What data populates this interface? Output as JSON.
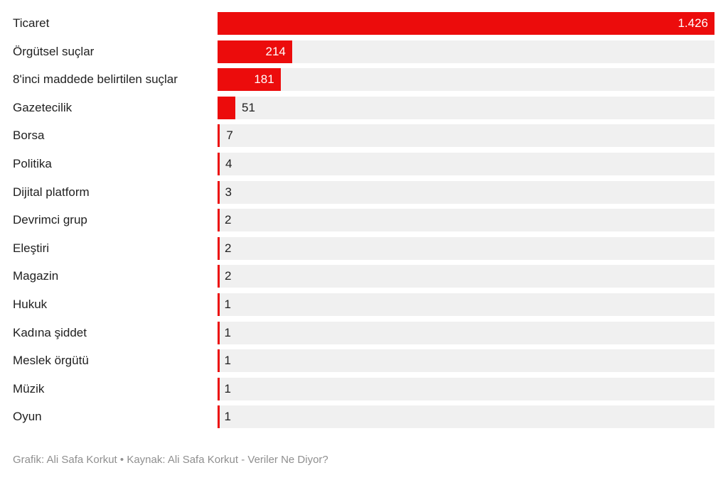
{
  "chart_data": {
    "type": "bar",
    "orientation": "horizontal",
    "title": "",
    "xlabel": "",
    "ylabel": "",
    "xmax": 1426,
    "grid": false,
    "legend": false,
    "bar_color": "#ec0c0c",
    "track_color": "#f0f0f0",
    "inside_label_threshold": 100,
    "categories": [
      "Ticaret",
      "Örgütsel suçlar",
      "8'inci maddede belirtilen suçlar",
      "Gazetecilik",
      "Borsa",
      "Politika",
      "Dijital platform",
      "Devrimci grup",
      "Eleştiri",
      "Magazin",
      "Hukuk",
      "Kadına şiddet",
      "Meslek örgütü",
      "Müzik",
      "Oyun"
    ],
    "values": [
      1426,
      214,
      181,
      51,
      7,
      4,
      3,
      2,
      2,
      2,
      1,
      1,
      1,
      1,
      1
    ],
    "value_labels": [
      "1.426",
      "214",
      "181",
      "51",
      "7",
      "4",
      "3",
      "2",
      "2",
      "2",
      "1",
      "1",
      "1",
      "1",
      "1"
    ]
  },
  "footer": {
    "credit": "Grafik: Ali Safa Korkut • Kaynak: Ali Safa Korkut - Veriler Ne Diyor?"
  }
}
